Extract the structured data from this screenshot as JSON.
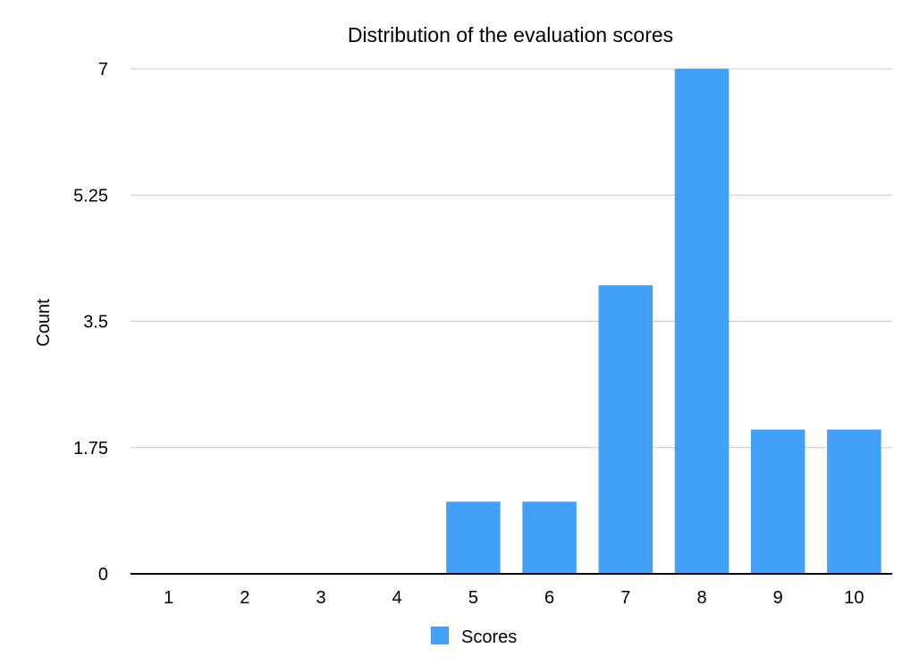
{
  "chart_data": {
    "type": "bar",
    "title": "Distribution of the evaluation scores",
    "xlabel": "",
    "ylabel": "Count",
    "categories": [
      "1",
      "2",
      "3",
      "4",
      "5",
      "6",
      "7",
      "8",
      "9",
      "10"
    ],
    "series": [
      {
        "name": "Scores",
        "values": [
          0,
          0,
          0,
          0,
          1,
          1,
          4,
          7,
          2,
          2
        ],
        "color": "#42a0f8"
      }
    ],
    "ylim": [
      0,
      7
    ],
    "y_ticks": [
      0,
      1.75,
      3.5,
      5.25,
      7
    ],
    "y_tick_labels": [
      "0",
      "1.75",
      "3.5",
      "5.25",
      "7"
    ],
    "grid": true,
    "legend_position": "bottom"
  }
}
